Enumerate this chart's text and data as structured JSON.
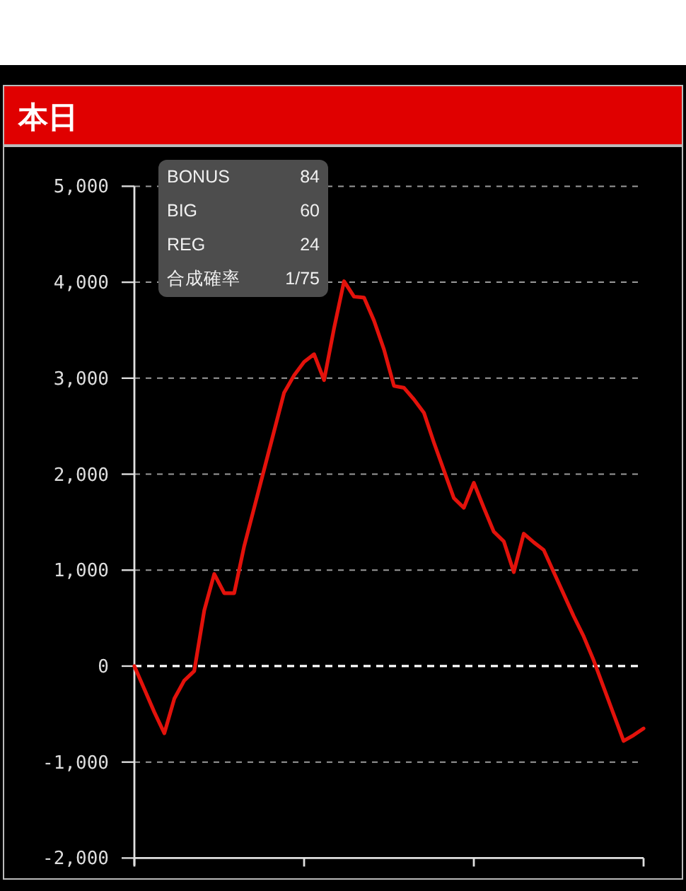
{
  "chart_data": {
    "type": "line",
    "title": "本日",
    "categories": [
      null,
      null,
      null,
      null,
      null,
      null,
      null,
      null,
      null,
      null,
      null,
      null,
      null,
      null,
      null,
      null,
      null,
      null,
      null,
      null,
      null,
      null,
      null,
      null,
      null,
      null,
      null,
      null,
      null,
      null,
      null,
      null,
      null,
      null,
      null,
      null,
      null,
      null,
      null,
      null,
      null,
      null,
      null,
      null,
      null,
      null,
      null,
      null,
      null,
      null,
      null,
      null
    ],
    "series": [
      {
        "color": "#e3120b",
        "values": [
          0,
          -240,
          -480,
          -700,
          -340,
          -150,
          -50,
          580,
          960,
          760,
          760,
          1250,
          1650,
          2050,
          2450,
          2850,
          3030,
          3170,
          3250,
          2980,
          3520,
          4010,
          3850,
          3840,
          3600,
          3300,
          2920,
          2900,
          2780,
          2640,
          2330,
          2040,
          1750,
          1650,
          1910,
          1650,
          1400,
          1300,
          980,
          1380,
          1290,
          1210,
          980,
          750,
          520,
          310,
          60,
          -220,
          -500,
          -780,
          -720,
          -650
        ]
      }
    ],
    "ylim": [
      -2000,
      5000
    ],
    "yticks": [
      {
        "value": -2000,
        "label": "-2,000"
      },
      {
        "value": -1000,
        "label": "-1,000"
      },
      0,
      {
        "value": 1000,
        "label": "1,000"
      },
      {
        "value": 2000,
        "label": "2,000"
      },
      {
        "value": 3000,
        "label": "3,000"
      },
      {
        "value": 4000,
        "label": "4,000"
      },
      {
        "value": 5000,
        "label": "5,000"
      }
    ],
    "grid": "y",
    "line_style": "solid",
    "ref_lines": [
      {
        "axis": "y",
        "value": 0,
        "color": "#ffffff",
        "line_style": "dashed"
      }
    ],
    "annotations": [
      "BONUS",
      "84",
      "BIG",
      "60",
      "REG",
      "24",
      "合成確率",
      "1/75"
    ]
  }
}
